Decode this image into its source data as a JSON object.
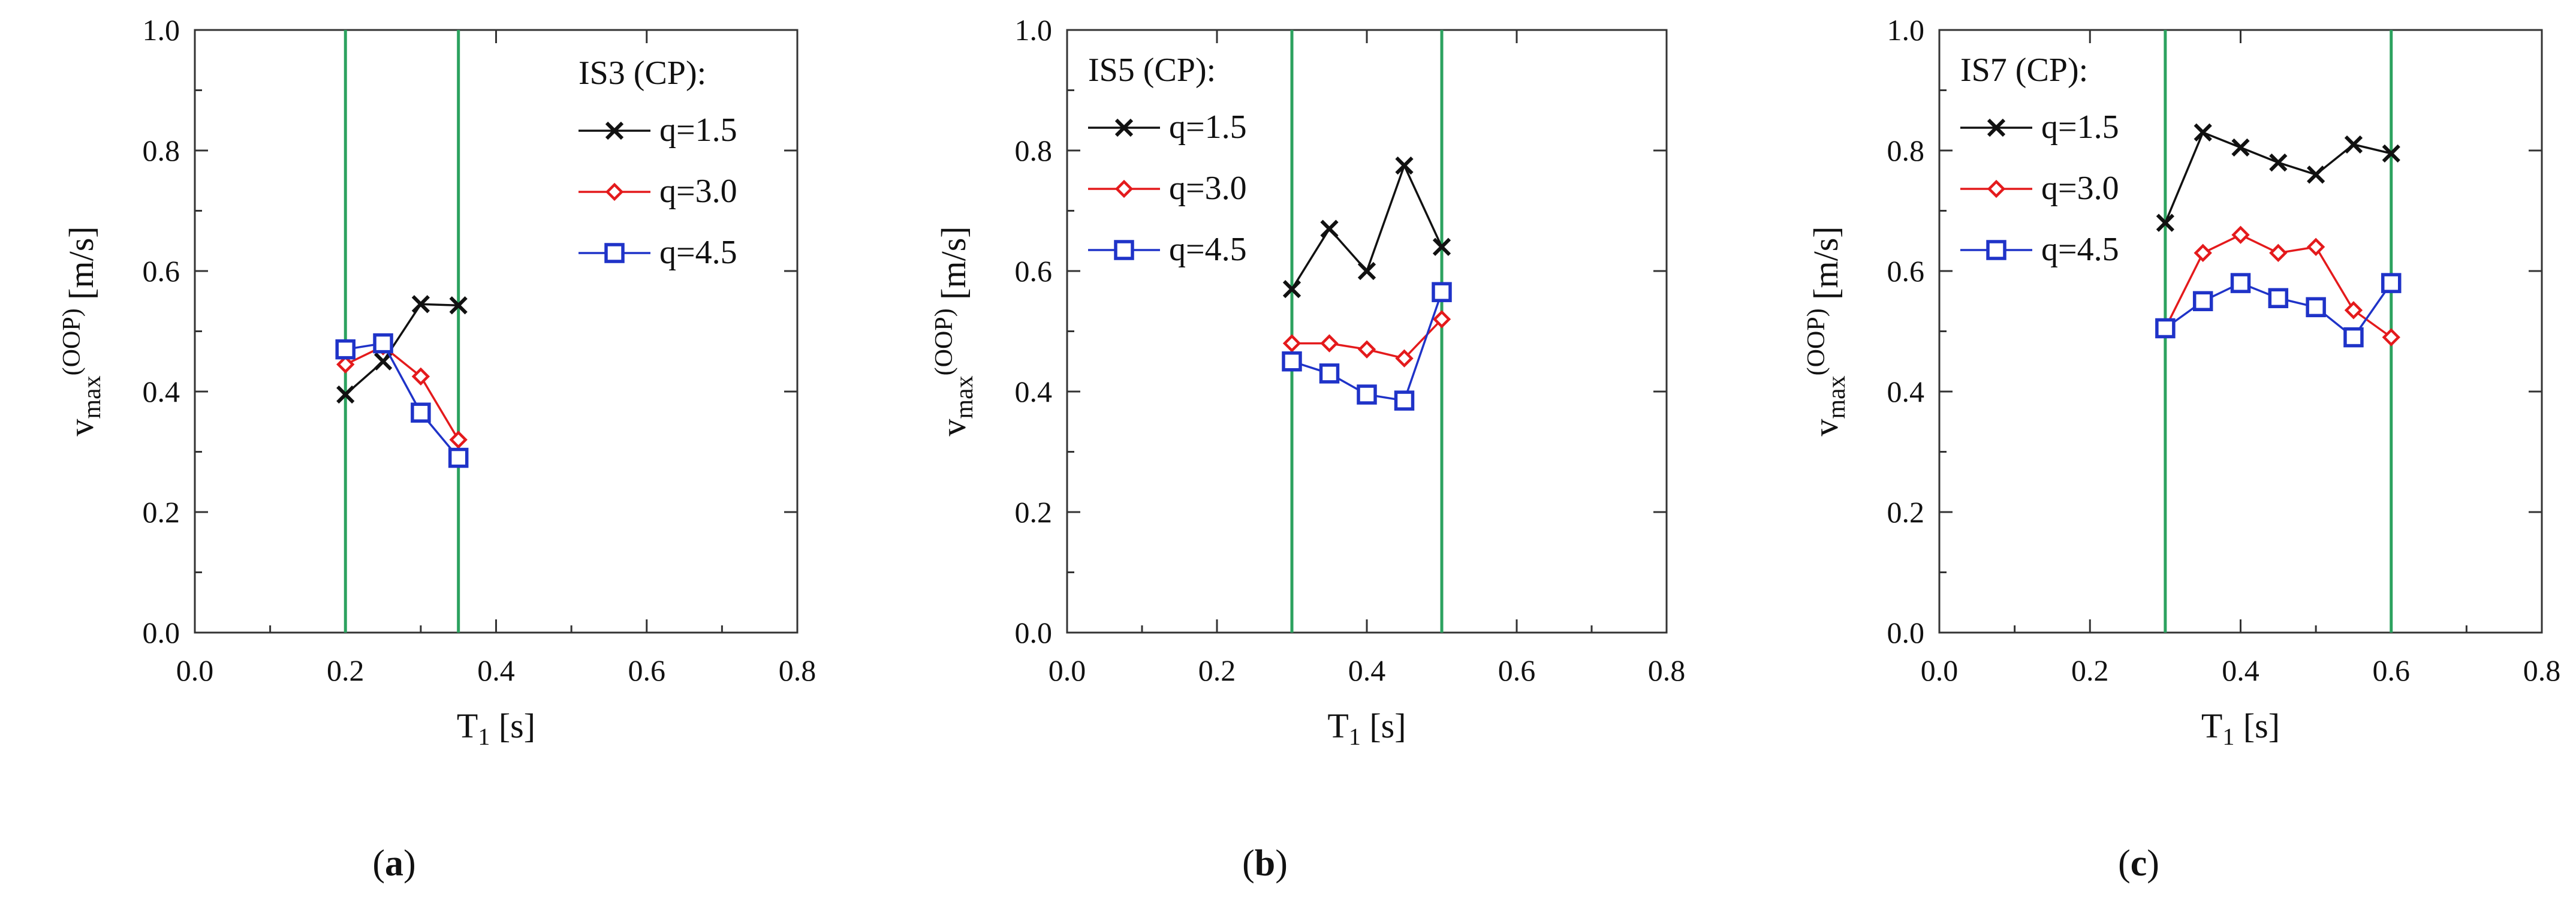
{
  "colors": {
    "black": "#111111",
    "red": "#e41a1c",
    "blue": "#1f33c8",
    "green": "#2ca25f",
    "axis": "#333333"
  },
  "chart_data": [
    {
      "type": "line",
      "panel_label": "a",
      "legend_title": "IS3 (CP):",
      "xlabel": "T1 [s]",
      "ylabel": "vmax(OOP) [m/s]",
      "xlim": [
        0.0,
        0.8
      ],
      "ylim": [
        0.0,
        1.0
      ],
      "xticks": [
        "0.0",
        "0.2",
        "0.4",
        "0.6",
        "0.8"
      ],
      "yticks": [
        "0.0",
        "0.2",
        "0.4",
        "0.6",
        "0.8",
        "1.0"
      ],
      "vlines": [
        0.2,
        0.35
      ],
      "x": [
        0.2,
        0.25,
        0.3,
        0.35
      ],
      "series": [
        {
          "name": "q=1.5",
          "marker": "x",
          "color": "#111111",
          "values": [
            0.395,
            0.45,
            0.545,
            0.543
          ]
        },
        {
          "name": "q=3.0",
          "marker": "diamond",
          "color": "#e41a1c",
          "values": [
            0.445,
            0.475,
            0.425,
            0.32
          ]
        },
        {
          "name": "q=4.5",
          "marker": "square",
          "color": "#1f33c8",
          "values": [
            0.47,
            0.48,
            0.365,
            0.29
          ]
        }
      ]
    },
    {
      "type": "line",
      "panel_label": "b",
      "legend_title": "IS5 (CP):",
      "xlabel": "T1 [s]",
      "ylabel": "vmax(OOP) [m/s]",
      "xlim": [
        0.0,
        0.8
      ],
      "ylim": [
        0.0,
        1.0
      ],
      "xticks": [
        "0.0",
        "0.2",
        "0.4",
        "0.6",
        "0.8"
      ],
      "yticks": [
        "0.0",
        "0.2",
        "0.4",
        "0.6",
        "0.8",
        "1.0"
      ],
      "vlines": [
        0.3,
        0.5
      ],
      "x": [
        0.3,
        0.35,
        0.4,
        0.45,
        0.5
      ],
      "series": [
        {
          "name": "q=1.5",
          "marker": "x",
          "color": "#111111",
          "values": [
            0.57,
            0.67,
            0.6,
            0.775,
            0.64
          ]
        },
        {
          "name": "q=3.0",
          "marker": "diamond",
          "color": "#e41a1c",
          "values": [
            0.48,
            0.48,
            0.47,
            0.455,
            0.52
          ]
        },
        {
          "name": "q=4.5",
          "marker": "square",
          "color": "#1f33c8",
          "values": [
            0.45,
            0.43,
            0.395,
            0.385,
            0.565
          ]
        }
      ]
    },
    {
      "type": "line",
      "panel_label": "c",
      "legend_title": "IS7 (CP):",
      "xlabel": "T1 [s]",
      "ylabel": "vmax(OOP) [m/s]",
      "xlim": [
        0.0,
        0.8
      ],
      "ylim": [
        0.0,
        1.0
      ],
      "xticks": [
        "0.0",
        "0.2",
        "0.4",
        "0.6",
        "0.8"
      ],
      "yticks": [
        "0.0",
        "0.2",
        "0.4",
        "0.6",
        "0.8",
        "1.0"
      ],
      "vlines": [
        0.3,
        0.6
      ],
      "x": [
        0.3,
        0.35,
        0.4,
        0.45,
        0.5,
        0.55,
        0.6
      ],
      "series": [
        {
          "name": "q=1.5",
          "marker": "x",
          "color": "#111111",
          "values": [
            0.68,
            0.83,
            0.805,
            0.78,
            0.76,
            0.81,
            0.795
          ]
        },
        {
          "name": "q=3.0",
          "marker": "diamond",
          "color": "#e41a1c",
          "values": [
            0.505,
            0.63,
            0.66,
            0.63,
            0.64,
            0.535,
            0.49
          ]
        },
        {
          "name": "q=4.5",
          "marker": "square",
          "color": "#1f33c8",
          "values": [
            0.505,
            0.55,
            0.58,
            0.555,
            0.54,
            0.49,
            0.58
          ]
        }
      ]
    }
  ]
}
